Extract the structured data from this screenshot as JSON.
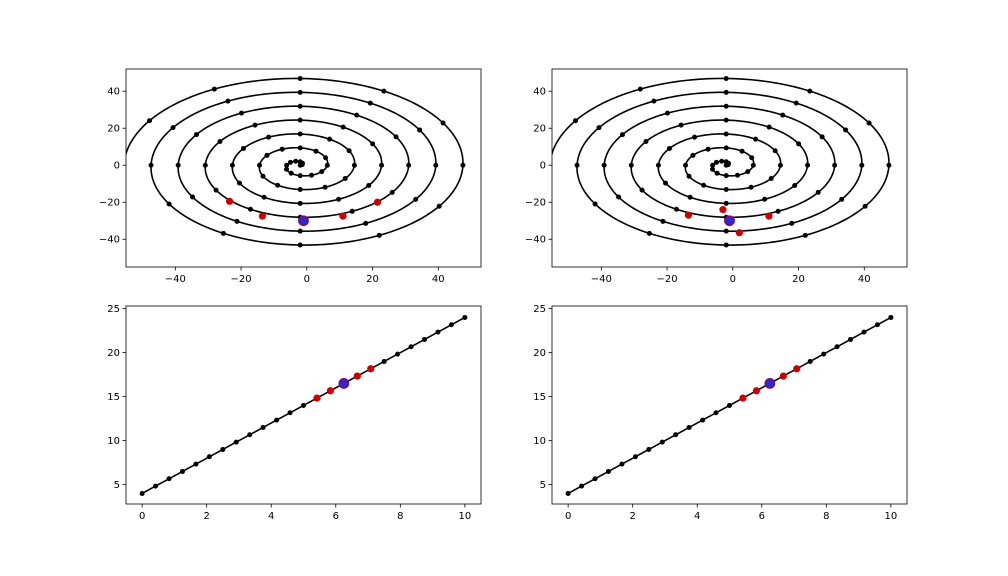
{
  "figure": {
    "background": "#ffffff",
    "colors": {
      "line": "#000000",
      "point": "#000000",
      "neighbor": "#cc0000",
      "query_fill": "#2a2ad0",
      "query_edge": "#7a0a7a"
    }
  },
  "chart_data": [
    {
      "type": "scatter",
      "panel": "top-left",
      "title": "",
      "xlabel": "",
      "ylabel": "",
      "xlim": [
        -55,
        53
      ],
      "ylim": [
        -55,
        52
      ],
      "xticks": [
        -40,
        -20,
        0,
        20,
        40
      ],
      "xtick_labels": [
        "−40",
        "−20",
        "0",
        "20",
        "40"
      ],
      "yticks": [
        -40,
        -20,
        0,
        20,
        40
      ],
      "ytick_labels": [
        "−40",
        "−20",
        "0",
        "20",
        "40"
      ],
      "grid": false,
      "curve": {
        "kind": "archimedean-spiral",
        "r_growth_per_turn": 7.5,
        "theta_start": 0,
        "theta_end_turns": 6.5,
        "x_scale": 1.1,
        "x_offset": -2,
        "direction": "counterclockwise"
      },
      "points_per_turn": 12,
      "highlight_query": [
        -1,
        -30
      ],
      "highlight_neighbors": [
        [
          -23.5,
          -19.5
        ],
        [
          -13.5,
          -27.5
        ],
        [
          11,
          -27.5
        ],
        [
          21.5,
          -20
        ]
      ]
    },
    {
      "type": "scatter",
      "panel": "top-right",
      "title": "",
      "xlabel": "",
      "ylabel": "",
      "xlim": [
        -55,
        53
      ],
      "ylim": [
        -55,
        52
      ],
      "xticks": [
        -40,
        -20,
        0,
        20,
        40
      ],
      "xtick_labels": [
        "−40",
        "−20",
        "0",
        "20",
        "40"
      ],
      "yticks": [
        -40,
        -20,
        0,
        20,
        40
      ],
      "ytick_labels": [
        "−40",
        "−20",
        "0",
        "20",
        "40"
      ],
      "grid": false,
      "curve": {
        "kind": "archimedean-spiral",
        "r_growth_per_turn": 7.5,
        "theta_start": 0,
        "theta_end_turns": 6.5,
        "x_scale": 1.1,
        "x_offset": -2,
        "direction": "counterclockwise"
      },
      "points_per_turn": 12,
      "highlight_query": [
        -1,
        -30
      ],
      "highlight_neighbors": [
        [
          -13.5,
          -27
        ],
        [
          -3,
          -24
        ],
        [
          11,
          -27.5
        ],
        [
          2,
          -36.5
        ]
      ]
    },
    {
      "type": "line",
      "panel": "bottom-left",
      "title": "",
      "xlabel": "",
      "ylabel": "",
      "xlim": [
        -0.5,
        10.5
      ],
      "ylim": [
        2.8,
        25.3
      ],
      "xticks": [
        0,
        2,
        4,
        6,
        8,
        10
      ],
      "xtick_labels": [
        "0",
        "2",
        "4",
        "6",
        "8",
        "10"
      ],
      "yticks": [
        5,
        10,
        15,
        20,
        25
      ],
      "ytick_labels": [
        "5",
        "10",
        "15",
        "20",
        "25"
      ],
      "grid": false,
      "x": [
        0,
        0.4167,
        0.8333,
        1.25,
        1.6667,
        2.0833,
        2.5,
        2.9167,
        3.3333,
        3.75,
        4.1667,
        4.5833,
        5.0,
        5.4167,
        5.8333,
        6.25,
        6.6667,
        7.0833,
        7.5,
        7.9167,
        8.3333,
        8.75,
        9.1667,
        9.5833,
        10.0
      ],
      "y": [
        4.0,
        4.8333,
        5.6667,
        6.5,
        7.3333,
        8.1667,
        9.0,
        9.8333,
        10.6667,
        11.5,
        12.3333,
        13.1667,
        14.0,
        14.8333,
        15.6667,
        16.5,
        17.3333,
        18.1667,
        19.0,
        19.8333,
        20.6667,
        21.5,
        22.3333,
        23.1667,
        24.0
      ],
      "highlight_query": [
        6.25,
        16.5
      ],
      "highlight_neighbors": [
        [
          5.4167,
          14.8333
        ],
        [
          5.8333,
          15.6667
        ],
        [
          6.6667,
          17.3333
        ],
        [
          7.0833,
          18.1667
        ]
      ]
    },
    {
      "type": "line",
      "panel": "bottom-right",
      "title": "",
      "xlabel": "",
      "ylabel": "",
      "xlim": [
        -0.5,
        10.5
      ],
      "ylim": [
        2.8,
        25.3
      ],
      "xticks": [
        0,
        2,
        4,
        6,
        8,
        10
      ],
      "xtick_labels": [
        "0",
        "2",
        "4",
        "6",
        "8",
        "10"
      ],
      "yticks": [
        5,
        10,
        15,
        20,
        25
      ],
      "ytick_labels": [
        "5",
        "10",
        "15",
        "20",
        "25"
      ],
      "grid": false,
      "x": [
        0,
        0.4167,
        0.8333,
        1.25,
        1.6667,
        2.0833,
        2.5,
        2.9167,
        3.3333,
        3.75,
        4.1667,
        4.5833,
        5.0,
        5.4167,
        5.8333,
        6.25,
        6.6667,
        7.0833,
        7.5,
        7.9167,
        8.3333,
        8.75,
        9.1667,
        9.5833,
        10.0
      ],
      "y": [
        4.0,
        4.8333,
        5.6667,
        6.5,
        7.3333,
        8.1667,
        9.0,
        9.8333,
        10.6667,
        11.5,
        12.3333,
        13.1667,
        14.0,
        14.8333,
        15.6667,
        16.5,
        17.3333,
        18.1667,
        19.0,
        19.8333,
        20.6667,
        21.5,
        22.3333,
        23.1667,
        24.0
      ],
      "highlight_query": [
        6.25,
        16.5
      ],
      "highlight_neighbors": [
        [
          5.4167,
          14.8333
        ],
        [
          5.8333,
          15.6667
        ],
        [
          6.6667,
          17.3333
        ],
        [
          7.0833,
          18.1667
        ]
      ]
    }
  ]
}
